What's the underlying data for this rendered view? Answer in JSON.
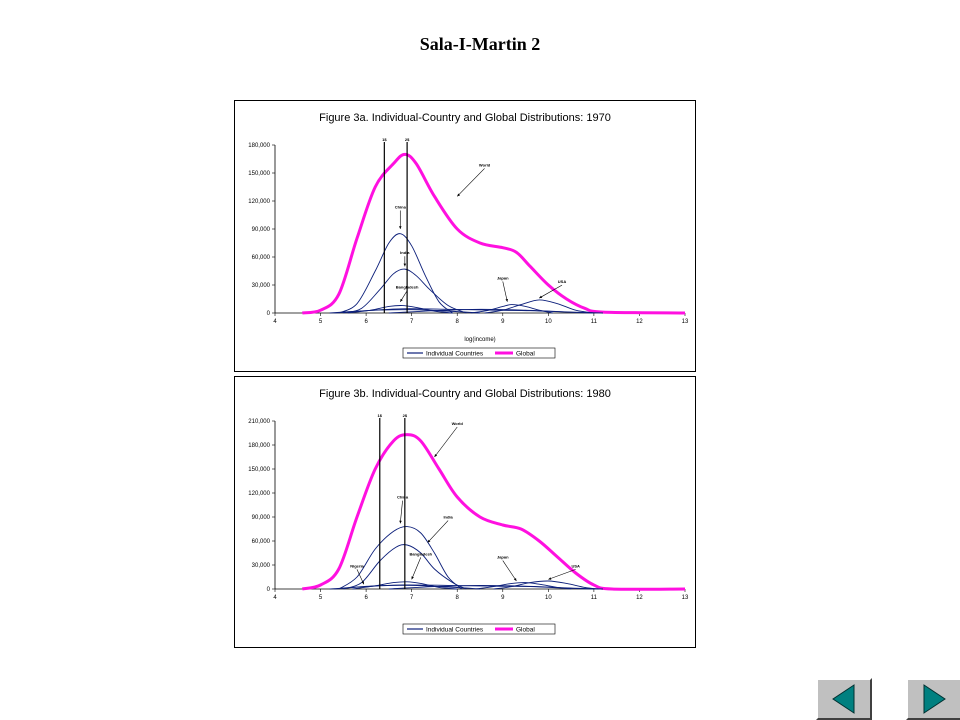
{
  "slide": {
    "title": "Sala-I-Martin 2"
  },
  "colors": {
    "individual": "#0c1f7a",
    "global": "#ff10e0",
    "nav_fill": "#008080"
  },
  "chart_data": [
    {
      "type": "line",
      "title": "Figure 3a. Individual-Country and Global Distributions: 1970",
      "xlabel": "log(income)",
      "xlim": [
        4,
        13
      ],
      "xticks": [
        4,
        5,
        6,
        7,
        8,
        9,
        10,
        11,
        12,
        13
      ],
      "ylim": [
        0,
        180000
      ],
      "yticks": [
        0,
        30000,
        60000,
        90000,
        120000,
        150000,
        180000
      ],
      "ytick_labels": [
        "0",
        "30,000",
        "60,000",
        "90,000",
        "120,000",
        "150,000",
        "180,000"
      ],
      "vlines": [
        {
          "x": 6.4,
          "label": "1$"
        },
        {
          "x": 6.9,
          "label": "2$"
        }
      ],
      "legend": {
        "placement": "bottom",
        "entries": [
          "Individual Countries",
          "Global"
        ]
      },
      "series": [
        {
          "name": "Global",
          "points": [
            [
              4.6,
              0
            ],
            [
              5.0,
              3000
            ],
            [
              5.4,
              20000
            ],
            [
              5.8,
              80000
            ],
            [
              6.2,
              135000
            ],
            [
              6.6,
              160000
            ],
            [
              6.85,
              170000
            ],
            [
              7.1,
              160000
            ],
            [
              7.5,
              125000
            ],
            [
              8.0,
              90000
            ],
            [
              8.5,
              75000
            ],
            [
              9.0,
              70000
            ],
            [
              9.3,
              65000
            ],
            [
              9.6,
              50000
            ],
            [
              10.0,
              30000
            ],
            [
              10.4,
              15000
            ],
            [
              10.8,
              5000
            ],
            [
              11.2,
              1000
            ],
            [
              13.0,
              0
            ]
          ]
        },
        {
          "name": "China",
          "points": [
            [
              5.4,
              0
            ],
            [
              5.8,
              10000
            ],
            [
              6.2,
              45000
            ],
            [
              6.5,
              75000
            ],
            [
              6.75,
              85000
            ],
            [
              7.0,
              72000
            ],
            [
              7.3,
              40000
            ],
            [
              7.6,
              12000
            ],
            [
              7.9,
              0
            ]
          ]
        },
        {
          "name": "India",
          "points": [
            [
              5.5,
              0
            ],
            [
              5.9,
              5000
            ],
            [
              6.3,
              25000
            ],
            [
              6.6,
              42000
            ],
            [
              6.85,
              47000
            ],
            [
              7.1,
              40000
            ],
            [
              7.4,
              25000
            ],
            [
              7.8,
              8000
            ],
            [
              8.2,
              0
            ]
          ]
        },
        {
          "name": "Japan",
          "points": [
            [
              8.3,
              0
            ],
            [
              8.7,
              3000
            ],
            [
              9.0,
              7000
            ],
            [
              9.2,
              9000
            ],
            [
              9.5,
              7000
            ],
            [
              9.8,
              3000
            ],
            [
              10.1,
              0
            ]
          ]
        },
        {
          "name": "USA",
          "points": [
            [
              8.6,
              0
            ],
            [
              9.0,
              3000
            ],
            [
              9.4,
              9000
            ],
            [
              9.8,
              14000
            ],
            [
              10.2,
              10000
            ],
            [
              10.6,
              3000
            ],
            [
              11.0,
              0
            ]
          ]
        },
        {
          "name": "Bangladesh",
          "points": [
            [
              5.6,
              0
            ],
            [
              6.1,
              3000
            ],
            [
              6.5,
              7000
            ],
            [
              6.8,
              8000
            ],
            [
              7.1,
              6000
            ],
            [
              7.5,
              2000
            ],
            [
              7.9,
              0
            ]
          ]
        },
        {
          "points": [
            [
              5.2,
              0
            ],
            [
              6.0,
              2500
            ],
            [
              6.8,
              4500
            ],
            [
              7.8,
              4000
            ],
            [
              8.8,
              3000
            ],
            [
              9.6,
              2500
            ],
            [
              10.4,
              1000
            ],
            [
              11.0,
              0
            ]
          ]
        },
        {
          "points": [
            [
              5.3,
              0
            ],
            [
              6.2,
              3000
            ],
            [
              7.0,
              3500
            ],
            [
              7.8,
              2000
            ],
            [
              8.5,
              0
            ]
          ]
        },
        {
          "points": [
            [
              6.5,
              0
            ],
            [
              7.5,
              2500
            ],
            [
              8.5,
              4000
            ],
            [
              9.5,
              3000
            ],
            [
              10.5,
              1000
            ],
            [
              11.2,
              0
            ]
          ]
        }
      ],
      "annotations": [
        {
          "text": "World",
          "x": 8.6,
          "y": 157000,
          "arrow_to": [
            8.0,
            125000
          ]
        },
        {
          "text": "China",
          "x": 6.75,
          "y": 112000,
          "arrow_to": [
            6.75,
            90000
          ]
        },
        {
          "text": "India",
          "x": 6.85,
          "y": 63000,
          "arrow_to": [
            6.85,
            50000
          ]
        },
        {
          "text": "Bangladesh",
          "x": 6.9,
          "y": 26000,
          "arrow_to": [
            6.75,
            12000
          ]
        },
        {
          "text": "Japan",
          "x": 9.0,
          "y": 36000,
          "arrow_to": [
            9.1,
            12000
          ]
        },
        {
          "text": "USA",
          "x": 10.3,
          "y": 32000,
          "arrow_to": [
            9.8,
            16000
          ]
        }
      ]
    },
    {
      "type": "line",
      "title": "Figure 3b. Individual-Country and Global Distributions: 1980",
      "xlabel": "",
      "xlim": [
        4,
        13
      ],
      "xticks": [
        4,
        5,
        6,
        7,
        8,
        9,
        10,
        11,
        12,
        13
      ],
      "ylim": [
        0,
        210000
      ],
      "yticks": [
        0,
        30000,
        60000,
        90000,
        120000,
        150000,
        180000,
        210000
      ],
      "ytick_labels": [
        "0",
        "30,000",
        "60,000",
        "90,000",
        "120,000",
        "150,000",
        "180,000",
        "210,000"
      ],
      "vlines": [
        {
          "x": 6.3,
          "label": "1$"
        },
        {
          "x": 6.85,
          "label": "2$"
        }
      ],
      "legend": {
        "placement": "bottom",
        "entries": [
          "Individual Countries",
          "Global"
        ]
      },
      "series": [
        {
          "name": "Global",
          "points": [
            [
              4.6,
              0
            ],
            [
              5.0,
              5000
            ],
            [
              5.4,
              25000
            ],
            [
              5.8,
              90000
            ],
            [
              6.2,
              150000
            ],
            [
              6.6,
              185000
            ],
            [
              6.9,
              193000
            ],
            [
              7.2,
              185000
            ],
            [
              7.6,
              150000
            ],
            [
              8.0,
              115000
            ],
            [
              8.5,
              90000
            ],
            [
              9.0,
              80000
            ],
            [
              9.4,
              75000
            ],
            [
              9.8,
              60000
            ],
            [
              10.2,
              40000
            ],
            [
              10.6,
              20000
            ],
            [
              11.0,
              5000
            ],
            [
              11.4,
              0
            ],
            [
              13.0,
              0
            ]
          ]
        },
        {
          "name": "China",
          "points": [
            [
              5.4,
              0
            ],
            [
              5.8,
              15000
            ],
            [
              6.2,
              50000
            ],
            [
              6.6,
              72000
            ],
            [
              6.9,
              78000
            ],
            [
              7.2,
              70000
            ],
            [
              7.5,
              45000
            ],
            [
              7.8,
              15000
            ],
            [
              8.1,
              0
            ]
          ]
        },
        {
          "name": "India",
          "points": [
            [
              5.5,
              0
            ],
            [
              5.9,
              8000
            ],
            [
              6.3,
              35000
            ],
            [
              6.65,
              52000
            ],
            [
              6.9,
              55000
            ],
            [
              7.2,
              45000
            ],
            [
              7.5,
              25000
            ],
            [
              7.9,
              8000
            ],
            [
              8.2,
              0
            ]
          ]
        },
        {
          "name": "Japan",
          "points": [
            [
              8.4,
              0
            ],
            [
              8.8,
              3000
            ],
            [
              9.2,
              7000
            ],
            [
              9.5,
              8000
            ],
            [
              9.8,
              6000
            ],
            [
              10.2,
              2000
            ],
            [
              10.5,
              0
            ]
          ]
        },
        {
          "name": "USA",
          "points": [
            [
              8.8,
              0
            ],
            [
              9.2,
              3000
            ],
            [
              9.6,
              8000
            ],
            [
              10.0,
              10000
            ],
            [
              10.4,
              7000
            ],
            [
              10.8,
              2000
            ],
            [
              11.1,
              0
            ]
          ]
        },
        {
          "name": "Bangladesh",
          "points": [
            [
              5.7,
              0
            ],
            [
              6.2,
              4000
            ],
            [
              6.6,
              8000
            ],
            [
              6.9,
              9000
            ],
            [
              7.2,
              7000
            ],
            [
              7.6,
              2000
            ],
            [
              8.0,
              0
            ]
          ]
        },
        {
          "points": [
            [
              5.2,
              0
            ],
            [
              6.0,
              3000
            ],
            [
              6.8,
              5000
            ],
            [
              7.8,
              4500
            ],
            [
              8.8,
              3500
            ],
            [
              9.6,
              3000
            ],
            [
              10.4,
              1000
            ],
            [
              11.0,
              0
            ]
          ]
        },
        {
          "points": [
            [
              5.3,
              0
            ],
            [
              6.2,
              4000
            ],
            [
              7.0,
              4500
            ],
            [
              7.8,
              2500
            ],
            [
              8.5,
              0
            ]
          ]
        },
        {
          "points": [
            [
              6.5,
              0
            ],
            [
              7.5,
              3000
            ],
            [
              8.5,
              4500
            ],
            [
              9.5,
              3500
            ],
            [
              10.5,
              1200
            ],
            [
              11.2,
              0
            ]
          ]
        }
      ],
      "annotations": [
        {
          "text": "World",
          "x": 8.0,
          "y": 205000,
          "arrow_to": [
            7.5,
            165000
          ]
        },
        {
          "text": "China",
          "x": 6.8,
          "y": 113000,
          "arrow_to": [
            6.75,
            82000
          ]
        },
        {
          "text": "India",
          "x": 7.8,
          "y": 88000,
          "arrow_to": [
            7.35,
            58000
          ]
        },
        {
          "text": "Bangladesh",
          "x": 7.2,
          "y": 42000,
          "arrow_to": [
            7.0,
            12000
          ]
        },
        {
          "text": "Nigeria",
          "x": 5.8,
          "y": 27000,
          "arrow_to": [
            5.95,
            6000
          ]
        },
        {
          "text": "Japan",
          "x": 9.0,
          "y": 38000,
          "arrow_to": [
            9.3,
            10000
          ]
        },
        {
          "text": "USA",
          "x": 10.6,
          "y": 27000,
          "arrow_to": [
            10.0,
            12000
          ]
        }
      ]
    }
  ]
}
